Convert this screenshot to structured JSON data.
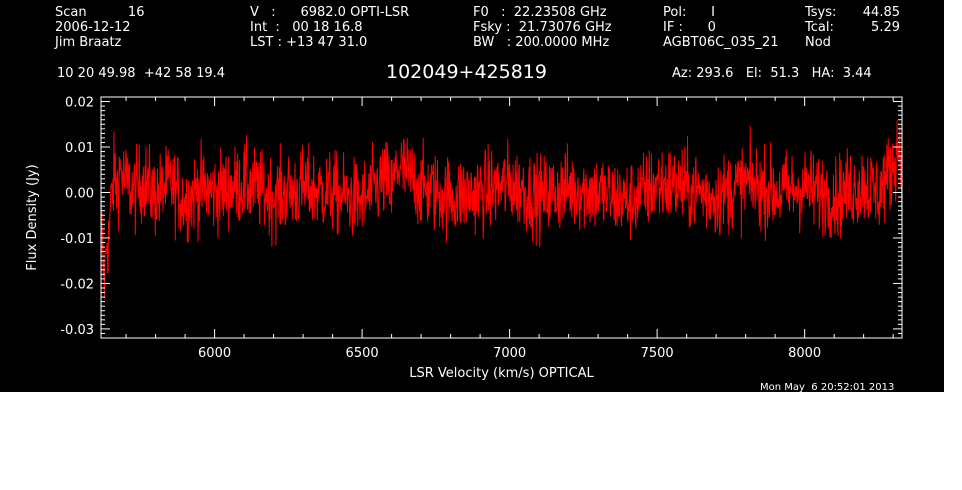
{
  "header": {
    "col1": [
      "Scan          16",
      "2006-12-12",
      "Jim Braatz"
    ],
    "col2": [
      "V   :      6982.0 OPTI-LSR",
      "Int  :   00 18 16.8",
      "LST : +13 47 31.0"
    ],
    "col3": [
      "F0   :  22.23508 GHz",
      "Fsky :  21.73076 GHz",
      "BW   : 200.0000 MHz"
    ],
    "col4": [
      "Pol:      I",
      "IF :      0",
      "AGBT06C_035_21"
    ],
    "col5a": [
      "Tsys:",
      "Tcal:",
      "Nod"
    ],
    "col5b": [
      "44.85",
      "5.29",
      ""
    ],
    "coords": "10 20 49.98  +42 58 19.4",
    "source": "102049+425819",
    "azelha": "Az: 293.6   El:  51.3   HA:  3.44",
    "timestamp": "Mon May  6 20:52:01 2013"
  },
  "colors": {
    "background": "#000000",
    "axes": "#ffffff",
    "trace": "#ff0000"
  },
  "chart_data": {
    "type": "line",
    "xlabel": "LSR Velocity (km/s) OPTICAL",
    "ylabel": "Flux Density (Jy)",
    "xlim": [
      5615,
      8330
    ],
    "ylim": [
      -0.032,
      0.021
    ],
    "xticks": [
      6000,
      6500,
      7000,
      7500,
      8000
    ],
    "yticks": [
      -0.03,
      -0.02,
      -0.01,
      0.0,
      0.01,
      0.02
    ],
    "ytick_labels": [
      "-0.03",
      "-0.02",
      "-0.01",
      "0.00",
      "0.01",
      "0.02"
    ],
    "series": [
      {
        "color": "#ff0000",
        "x": [
          5615,
          5620,
          5625,
          5630,
          5635,
          5640,
          5645,
          5650,
          5660,
          5670,
          5680,
          5700,
          5730,
          5760,
          5800,
          5850,
          5900,
          5950,
          6000,
          6100,
          6200,
          6300,
          6400,
          6500,
          6580,
          6600,
          6620,
          6700,
          6800,
          6900,
          7000,
          7100,
          7200,
          7300,
          7400,
          7500,
          7600,
          7700,
          7800,
          7900,
          8000,
          8100,
          8200,
          8250,
          8280,
          8300,
          8310,
          8320,
          8330
        ],
        "y": [
          -0.004,
          -0.012,
          -0.02,
          -0.016,
          -0.009,
          -0.012,
          -0.006,
          -0.002,
          0.004,
          0.001,
          0.005,
          0.002,
          0.0,
          0.003,
          -0.001,
          0.002,
          -0.002,
          0.001,
          0.0,
          0.002,
          -0.001,
          0.001,
          0.0,
          -0.002,
          0.003,
          0.0,
          0.006,
          0.001,
          -0.001,
          0.0,
          0.002,
          -0.001,
          0.001,
          0.0,
          -0.002,
          0.002,
          0.001,
          -0.001,
          0.002,
          0.0,
          0.001,
          -0.001,
          0.002,
          0.0,
          0.003,
          0.006,
          0.009,
          0.011,
          0.004
        ],
        "noise_rms": 0.0045
      }
    ]
  }
}
